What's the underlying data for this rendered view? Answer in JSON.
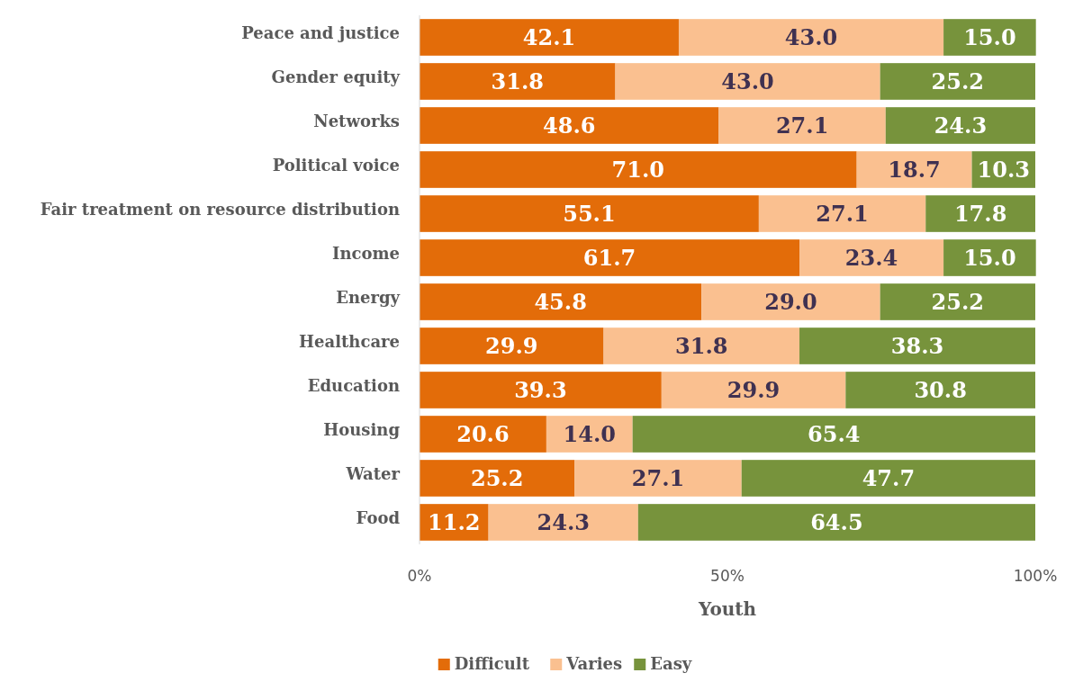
{
  "chart_data": {
    "type": "bar",
    "orientation": "horizontal",
    "stacked": true,
    "xlabel": "Youth",
    "categories": [
      "Peace and justice",
      "Gender equity",
      "Networks",
      "Political voice",
      "Fair treatment on resource distribution",
      "Income",
      "Energy",
      "Healthcare",
      "Education",
      "Housing",
      "Water",
      "Food"
    ],
    "series": [
      {
        "name": "Difficult",
        "color": "#e36c09",
        "values": [
          42.1,
          31.8,
          48.6,
          71.0,
          55.1,
          61.7,
          45.8,
          29.9,
          39.3,
          20.6,
          25.2,
          11.2
        ],
        "value_labels": [
          "42.1",
          "31.8",
          "48.6",
          "71.0",
          "55.1",
          "61.7",
          "45.8",
          "29.9",
          "39.3",
          "20.6",
          "25.2",
          "11.2"
        ]
      },
      {
        "name": "Varies",
        "color": "#fac090",
        "values": [
          43.0,
          43.0,
          27.1,
          18.7,
          27.1,
          23.4,
          29.0,
          31.8,
          29.9,
          14.0,
          27.1,
          24.3
        ],
        "value_labels": [
          "43.0",
          "43.0",
          "27.1",
          "18.7",
          "27.1",
          "23.4",
          "29.0",
          "31.8",
          "29.9",
          "14.0",
          "27.1",
          "24.3"
        ]
      },
      {
        "name": "Easy",
        "color": "#77933c",
        "values": [
          15.0,
          25.2,
          24.3,
          10.3,
          17.8,
          15.0,
          25.2,
          38.3,
          30.8,
          65.4,
          47.7,
          64.5
        ],
        "value_labels": [
          "15.0",
          "25.2",
          "24.3",
          "10.3",
          "17.8",
          "15.0",
          "25.2",
          "38.3",
          "30.8",
          "65.4",
          "47.7",
          "64.5"
        ]
      }
    ],
    "xlim": [
      0,
      100
    ],
    "xticks": [
      {
        "value": 0,
        "label": "0%"
      },
      {
        "value": 50,
        "label": "50%"
      },
      {
        "value": 100,
        "label": "100%"
      }
    ],
    "legend": "bottom",
    "grid": false
  }
}
